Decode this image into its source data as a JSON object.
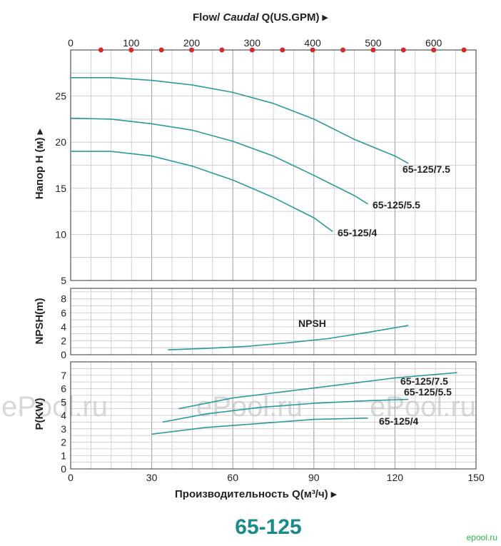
{
  "chart_data": [
    {
      "type": "line",
      "panel": "head",
      "title": "Flow/ Caudal Q(US.GPM)",
      "ylabel": "Напор H (м)",
      "top_axis": {
        "ticks": [
          0,
          100,
          200,
          300,
          400,
          500,
          600
        ],
        "dot_values": [
          50,
          100,
          150,
          200,
          250,
          300,
          350,
          400,
          450,
          500,
          550,
          600,
          650
        ],
        "xlim": [
          0,
          670
        ]
      },
      "xlim": [
        0,
        150
      ],
      "ylim": [
        5,
        30
      ],
      "yticks": [
        5,
        10,
        15,
        20,
        25
      ],
      "series": [
        {
          "name": "65-125/7.5",
          "x": [
            0,
            15,
            30,
            45,
            60,
            75,
            90,
            105,
            120,
            125
          ],
          "y": [
            27,
            27,
            26.7,
            26.2,
            25.4,
            24.2,
            22.5,
            20.3,
            18.5,
            17.7
          ]
        },
        {
          "name": "65-125/5.5",
          "x": [
            0,
            15,
            30,
            45,
            60,
            75,
            90,
            105,
            110
          ],
          "y": [
            22.6,
            22.5,
            22,
            21.3,
            20.1,
            18.5,
            16.4,
            14.2,
            13.3
          ]
        },
        {
          "name": "65-125/4",
          "x": [
            0,
            15,
            30,
            45,
            60,
            75,
            90,
            97
          ],
          "y": [
            19,
            19,
            18.5,
            17.4,
            15.9,
            14,
            11.8,
            10.3
          ]
        }
      ]
    },
    {
      "type": "line",
      "panel": "npsh",
      "ylabel": "NPSH(m)",
      "xlim": [
        0,
        150
      ],
      "ylim": [
        0,
        9.5
      ],
      "yticks": [
        0,
        2,
        4,
        6,
        8
      ],
      "series": [
        {
          "name": "NPSH",
          "x": [
            36,
            50,
            65,
            80,
            95,
            110,
            125
          ],
          "y": [
            0.7,
            0.9,
            1.2,
            1.7,
            2.3,
            3.2,
            4.2
          ]
        }
      ]
    },
    {
      "type": "line",
      "panel": "power",
      "ylabel": "P(KW)",
      "xlabel": "Производительность Q(м³/ч)",
      "xlim": [
        0,
        150
      ],
      "xticks": [
        0,
        30,
        60,
        90,
        120,
        150
      ],
      "ylim": [
        0,
        8
      ],
      "yticks": [
        0,
        1,
        2,
        3,
        4,
        5,
        6,
        7
      ],
      "series": [
        {
          "name": "65-125/7.5",
          "x": [
            40,
            60,
            80,
            100,
            120,
            143
          ],
          "y": [
            4.5,
            5.3,
            5.8,
            6.3,
            6.8,
            7.2
          ]
        },
        {
          "name": "65-125/5.5",
          "x": [
            34,
            50,
            70,
            90,
            110,
            125
          ],
          "y": [
            3.5,
            4.1,
            4.6,
            4.9,
            5.1,
            5.2
          ]
        },
        {
          "name": "65-125/4",
          "x": [
            30,
            50,
            70,
            90,
            110
          ],
          "y": [
            2.6,
            3.1,
            3.4,
            3.7,
            3.8
          ]
        }
      ]
    }
  ],
  "labels": {
    "model": "65-125",
    "npsh_label": "NPSH",
    "watermark": "ePool.ru",
    "logo": "epool.ru"
  }
}
